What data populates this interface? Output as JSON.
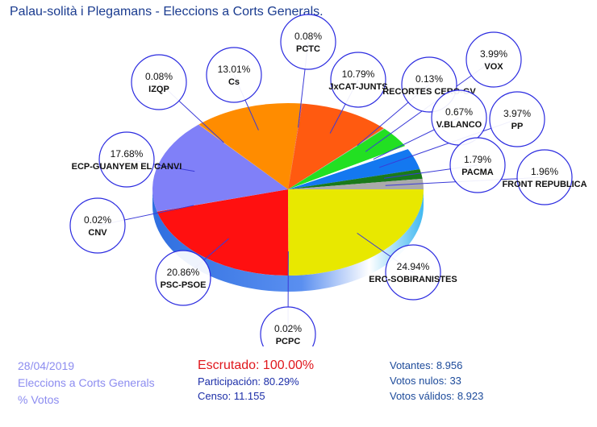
{
  "header": {
    "title": "Palau-solità i Plegamans - Eleccions a Corts Generals."
  },
  "chart_data": {
    "type": "pie",
    "title": "Palau-solità i Plegamans - Eleccions a Corts Generals.",
    "unit": "% Votos",
    "slices": [
      {
        "label": "ERC-SOBIRANISTES",
        "pct_text": "24.94%",
        "value": 24.94,
        "color": "#e8e800"
      },
      {
        "label": "PCPC",
        "pct_text": "0.02%",
        "value": 0.02,
        "color": "#d8d8d8"
      },
      {
        "label": "PSC-PSOE",
        "pct_text": "20.86%",
        "value": 20.86,
        "color": "#ff1010"
      },
      {
        "label": "CNV",
        "pct_text": "0.02%",
        "value": 0.02,
        "color": "#c8c8c8"
      },
      {
        "label": "ECP-GUANYEM EL CANVI",
        "pct_text": "17.68%",
        "value": 17.68,
        "color": "#8080f8"
      },
      {
        "label": "IZQP",
        "pct_text": "0.08%",
        "value": 0.08,
        "color": "#ffa040"
      },
      {
        "label": "Cs",
        "pct_text": "13.01%",
        "value": 13.01,
        "color": "#ff8c00"
      },
      {
        "label": "PCTC",
        "pct_text": "0.08%",
        "value": 0.08,
        "color": "#e05050"
      },
      {
        "label": "JxCAT-JUNTS",
        "pct_text": "10.79%",
        "value": 10.79,
        "color": "#ff5a10"
      },
      {
        "label": "RECORTES CERO-GV",
        "pct_text": "0.13%",
        "value": 0.13,
        "color": "#b0b0b0"
      },
      {
        "label": "VOX",
        "pct_text": "3.99%",
        "value": 3.99,
        "color": "#22e022"
      },
      {
        "label": "V.BLANCO",
        "pct_text": "0.67%",
        "value": 0.67,
        "color": "#ffffff"
      },
      {
        "label": "PP",
        "pct_text": "3.97%",
        "value": 3.97,
        "color": "#1478f0"
      },
      {
        "label": "PACMA",
        "pct_text": "1.79%",
        "value": 1.79,
        "color": "#1a7a1a"
      },
      {
        "label": "FRONT REPUBLICA",
        "pct_text": "1.96%",
        "value": 1.96,
        "color": "#aaaaaa"
      }
    ]
  },
  "footer": {
    "date": "28/04/2019",
    "election": "Eleccions a Corts Generals",
    "unit": "% Votos",
    "scrutiny": "Escrutado: 100.00%",
    "participation": "Participación: 80.29%",
    "census": "Censo: 11.155",
    "voters": "Votantes: 8.956",
    "null_votes": "Votos nulos: 33",
    "valid_votes": "Votos válidos: 8.923"
  }
}
